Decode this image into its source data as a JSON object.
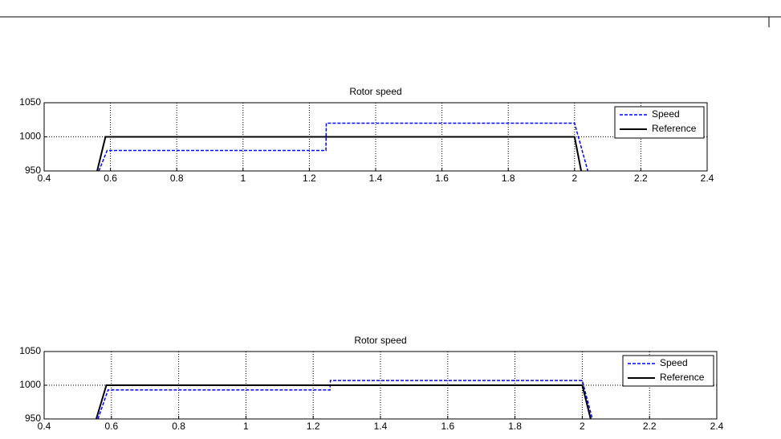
{
  "chart_data": [
    {
      "type": "line",
      "title": "Rotor speed",
      "xlim": [
        0.4,
        2.4
      ],
      "xticks": [
        0.4,
        0.6,
        0.8,
        1,
        1.2,
        1.4,
        1.6,
        1.8,
        2,
        2.2,
        2.4
      ],
      "ylim": [
        950,
        1050
      ],
      "yticks": [
        950,
        1000,
        1050
      ],
      "grid": true,
      "legend": "upper right",
      "series": [
        {
          "name": "Speed",
          "color": "#0000ff",
          "linestyle": "dashed",
          "x": [
            0.565,
            0.59,
            1.25,
            1.251,
            2.0,
            2.04
          ],
          "values": [
            950,
            980,
            980,
            1020,
            1020,
            950
          ]
        },
        {
          "name": "Reference",
          "color": "#000000",
          "linestyle": "solid",
          "x": [
            0.56,
            0.585,
            2.0,
            2.02
          ],
          "values": [
            950,
            1000,
            1000,
            950
          ]
        }
      ]
    },
    {
      "type": "line",
      "title": "Rotor speed",
      "xlim": [
        0.4,
        2.4
      ],
      "xticks": [
        0.4,
        0.6,
        0.8,
        1,
        1.2,
        1.4,
        1.6,
        1.8,
        2,
        2.2,
        2.4
      ],
      "ylim": [
        950,
        1050
      ],
      "yticks": [
        950,
        1000,
        1050
      ],
      "grid": true,
      "legend": "upper right",
      "series": [
        {
          "name": "Speed",
          "color": "#0000ff",
          "linestyle": "dashed",
          "x": [
            0.56,
            0.59,
            1.25,
            1.251,
            2.0,
            2.03
          ],
          "values": [
            950,
            993,
            993,
            1007,
            1007,
            950
          ]
        },
        {
          "name": "Reference",
          "color": "#000000",
          "linestyle": "solid",
          "x": [
            0.555,
            0.585,
            2.0,
            2.025
          ],
          "values": [
            950,
            1000,
            1000,
            950
          ]
        }
      ]
    }
  ]
}
